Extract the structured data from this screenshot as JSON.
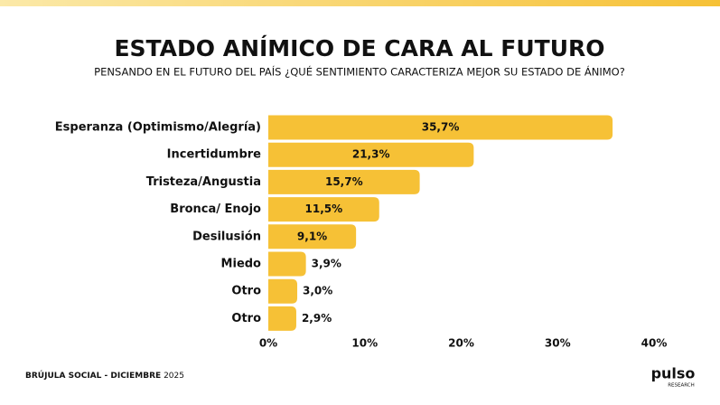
{
  "chart_data": {
    "type": "bar",
    "orientation": "horizontal",
    "title": "ESTADO ANÍMICO DE CARA AL FUTURO",
    "subtitle": "PENSANDO EN EL FUTURO DEL PAÍS ¿QUÉ SENTIMIENTO CARACTERIZA MEJOR SU ESTADO DE ÁNIMO?",
    "categories": [
      "Esperanza (Optimismo/Alegría)",
      "Incertidumbre",
      "Tristeza/Angustia",
      "Bronca/ Enojo",
      "Desilusión",
      "Miedo",
      "Otro",
      "Otro"
    ],
    "values": [
      35.7,
      21.3,
      15.7,
      11.5,
      9.1,
      3.9,
      3.0,
      2.9
    ],
    "value_labels": [
      "35,7%",
      "21,3%",
      "15,7%",
      "11,5%",
      "9,1%",
      "3,9%",
      "3,0%",
      "2,9%"
    ],
    "color": "#f6c136",
    "xlim": [
      0,
      40
    ],
    "xticks": [
      {
        "value": 0,
        "label": "0%"
      },
      {
        "value": 10,
        "label": "10%"
      },
      {
        "value": 20,
        "label": "20%"
      },
      {
        "value": 30,
        "label": "30%"
      },
      {
        "value": 40,
        "label": "40%"
      }
    ],
    "grid": false
  },
  "footer": {
    "source": "BRÚJULA SOCIAL - DICIEMBRE",
    "year": "2025"
  },
  "logo": {
    "name": "pulso",
    "tagline": "RESEARCH"
  }
}
